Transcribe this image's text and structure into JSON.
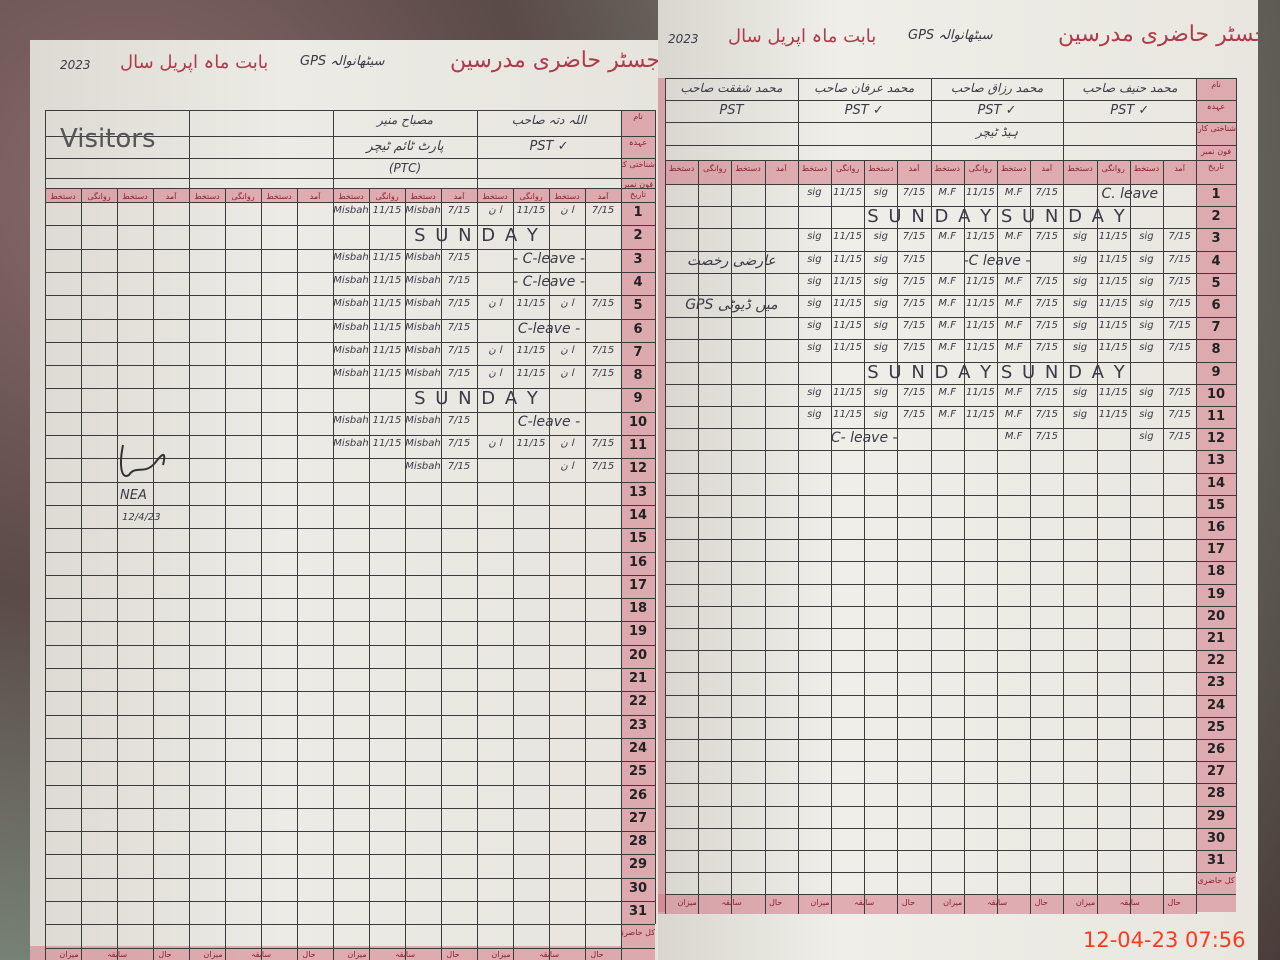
{
  "left_page": {
    "title": "رجسٹر حاضری مدرسین",
    "school": "GPS سیٹھانوالہ",
    "month_label": "بابت ماہ اپریل سال",
    "year": "2023",
    "visitors_label": "Visitors",
    "column_labels": [
      "دستخط",
      "روانگی",
      "دستخط",
      "آمد"
    ],
    "row_labels": [
      "نام",
      "عہدہ",
      "شناختی کارڈ",
      "فون نمبر",
      "تاریخ"
    ],
    "groups": [
      {
        "name": "",
        "designation": "",
        "extra": ""
      },
      {
        "name": "",
        "designation": "",
        "extra": ""
      },
      {
        "name": "مصباح منیر",
        "designation": "پارٹ ٹائم ٹیچر",
        "extra": "(PTC)"
      },
      {
        "name": "اللہ دتہ صاحب",
        "designation": "PST ✓",
        "extra": ""
      }
    ],
    "attendance": [
      {
        "day": "1",
        "entries": [
          null,
          null,
          [
            "Misbah",
            "11/15",
            "Misbah",
            "7/15"
          ],
          [
            "ا ن",
            "11/15",
            "ا ن",
            "7/15"
          ]
        ]
      },
      {
        "day": "2",
        "sunday": "S U N D A Y",
        "span_from": 2
      },
      {
        "day": "3",
        "entries": [
          null,
          null,
          [
            "Misbah",
            "11/15",
            "Misbah",
            "7/15"
          ],
          "- C-leave -"
        ]
      },
      {
        "day": "4",
        "entries": [
          null,
          null,
          [
            "Misbah",
            "11/15",
            "Misbah",
            "7/15"
          ],
          "- C-leave -"
        ]
      },
      {
        "day": "5",
        "entries": [
          null,
          null,
          [
            "Misbah",
            "11/15",
            "Misbah",
            "7/15"
          ],
          [
            "ا ن",
            "11/15",
            "ا ن",
            "7/15"
          ]
        ]
      },
      {
        "day": "6",
        "entries": [
          null,
          null,
          [
            "Misbah",
            "11/15",
            "Misbah",
            "7/15"
          ],
          "C-leave -"
        ]
      },
      {
        "day": "7",
        "entries": [
          null,
          null,
          [
            "Misbah",
            "11/15",
            "Misbah",
            "7/15"
          ],
          [
            "ا ن",
            "11/15",
            "ا ن",
            "7/15"
          ]
        ]
      },
      {
        "day": "8",
        "entries": [
          null,
          null,
          [
            "Misbah",
            "11/15",
            "Misbah",
            "7/15"
          ],
          [
            "ا ن",
            "11/15",
            "ا ن",
            "7/15"
          ]
        ]
      },
      {
        "day": "9",
        "sunday": "S U N D A Y",
        "span_from": 2
      },
      {
        "day": "10",
        "entries": [
          null,
          null,
          [
            "Misbah",
            "11/15",
            "Misbah",
            "7/15"
          ],
          "C-leave -"
        ]
      },
      {
        "day": "11",
        "entries": [
          null,
          null,
          [
            "Misbah",
            "11/15",
            "Misbah",
            "7/15"
          ],
          [
            "ا ن",
            "11/15",
            "ا ن",
            "7/15"
          ]
        ]
      },
      {
        "day": "12",
        "entries": [
          null,
          null,
          [
            "",
            "",
            "Misbah",
            "7/15"
          ],
          [
            "",
            "",
            "ا ن",
            "7/15"
          ]
        ]
      }
    ],
    "visitor_signature": {
      "name": "NEA",
      "date": "12/4/23"
    },
    "footer_labels": [
      "میزان",
      "سابقہ",
      "حال"
    ],
    "footer_corner": "کل حاضری"
  },
  "right_page": {
    "title": "رجسٹر حاضری مدرسین",
    "school": "GPS سیٹھانوالہ",
    "month_label": "بابت ماہ اپریل سال",
    "year": "2023",
    "column_labels": [
      "دستخط",
      "روانگی",
      "دستخط",
      "آمد"
    ],
    "row_labels": [
      "نام",
      "عہدہ",
      "شناختی کارڈ",
      "فون نمبر",
      "تاریخ"
    ],
    "groups": [
      {
        "name": "محمد شفقت صاحب",
        "designation": "PST",
        "extra": ""
      },
      {
        "name": "محمد عرفان صاحب",
        "designation": "PST ✓",
        "extra": ""
      },
      {
        "name": "محمد رزاق صاحب",
        "designation": "PST ✓",
        "extra": "ہیڈ ٹیچر"
      },
      {
        "name": "محمد حنیف صاحب",
        "designation": "PST ✓",
        "extra": ""
      }
    ],
    "attendance": [
      {
        "day": "1",
        "entries": [
          null,
          [
            "sig",
            "11/15",
            "sig",
            "7/15"
          ],
          [
            "M.F",
            "11/15",
            "M.F",
            "7/15"
          ],
          "C. leave"
        ]
      },
      {
        "day": "2",
        "sunday": "S U N D A Y S U N D A Y",
        "span_from": 1
      },
      {
        "day": "3",
        "entries": [
          null,
          [
            "sig",
            "11/15",
            "sig",
            "7/15"
          ],
          [
            "M.F",
            "11/15",
            "M.F",
            "7/15"
          ],
          [
            "sig",
            "11/15",
            "sig",
            "7/15"
          ]
        ]
      },
      {
        "day": "4",
        "entries": [
          "عارضی رخصت",
          [
            "sig",
            "11/15",
            "sig",
            "7/15"
          ],
          "-C leave -",
          [
            "sig",
            "11/15",
            "sig",
            "7/15"
          ]
        ]
      },
      {
        "day": "5",
        "entries": [
          null,
          [
            "sig",
            "11/15",
            "sig",
            "7/15"
          ],
          [
            "M.F",
            "11/15",
            "M.F",
            "7/15"
          ],
          [
            "sig",
            "11/15",
            "sig",
            "7/15"
          ]
        ]
      },
      {
        "day": "6",
        "entries": [
          "GPS میں ڈیوٹی",
          [
            "sig",
            "11/15",
            "sig",
            "7/15"
          ],
          [
            "M.F",
            "11/15",
            "M.F",
            "7/15"
          ],
          [
            "sig",
            "11/15",
            "sig",
            "7/15"
          ]
        ]
      },
      {
        "day": "7",
        "entries": [
          null,
          [
            "sig",
            "11/15",
            "sig",
            "7/15"
          ],
          [
            "M.F",
            "11/15",
            "M.F",
            "7/15"
          ],
          [
            "sig",
            "11/15",
            "sig",
            "7/15"
          ]
        ]
      },
      {
        "day": "8",
        "entries": [
          null,
          [
            "sig",
            "11/15",
            "sig",
            "7/15"
          ],
          [
            "M.F",
            "11/15",
            "M.F",
            "7/15"
          ],
          [
            "sig",
            "11/15",
            "sig",
            "7/15"
          ]
        ]
      },
      {
        "day": "9",
        "sunday": "S U N D A Y S U N D A Y",
        "span_from": 1
      },
      {
        "day": "10",
        "entries": [
          null,
          [
            "sig",
            "11/15",
            "sig",
            "7/15"
          ],
          [
            "M.F",
            "11/15",
            "M.F",
            "7/15"
          ],
          [
            "sig",
            "11/15",
            "sig",
            "7/15"
          ]
        ]
      },
      {
        "day": "11",
        "entries": [
          null,
          [
            "sig",
            "11/15",
            "sig",
            "7/15"
          ],
          [
            "M.F",
            "11/15",
            "M.F",
            "7/15"
          ],
          [
            "sig",
            "11/15",
            "sig",
            "7/15"
          ]
        ]
      },
      {
        "day": "12",
        "entries": [
          null,
          "C- leave -",
          [
            "",
            "",
            "M.F",
            "7/15"
          ],
          [
            "",
            "",
            "sig",
            "7/15"
          ]
        ]
      }
    ],
    "footer_labels": [
      "میزان",
      "سابقہ",
      "حال"
    ],
    "footer_corner": "کل حاضری"
  },
  "days": [
    "1",
    "2",
    "3",
    "4",
    "5",
    "6",
    "7",
    "8",
    "9",
    "10",
    "11",
    "12",
    "13",
    "14",
    "15",
    "16",
    "17",
    "18",
    "19",
    "20",
    "21",
    "22",
    "23",
    "24",
    "25",
    "26",
    "27",
    "28",
    "29",
    "30",
    "31"
  ],
  "timestamp": "12-04-23  07:56",
  "colors": {
    "ink": "#3a3a48",
    "register_red": "#b03a4a",
    "pink_band": "#d47887",
    "timestamp": "#ff3a1a"
  }
}
